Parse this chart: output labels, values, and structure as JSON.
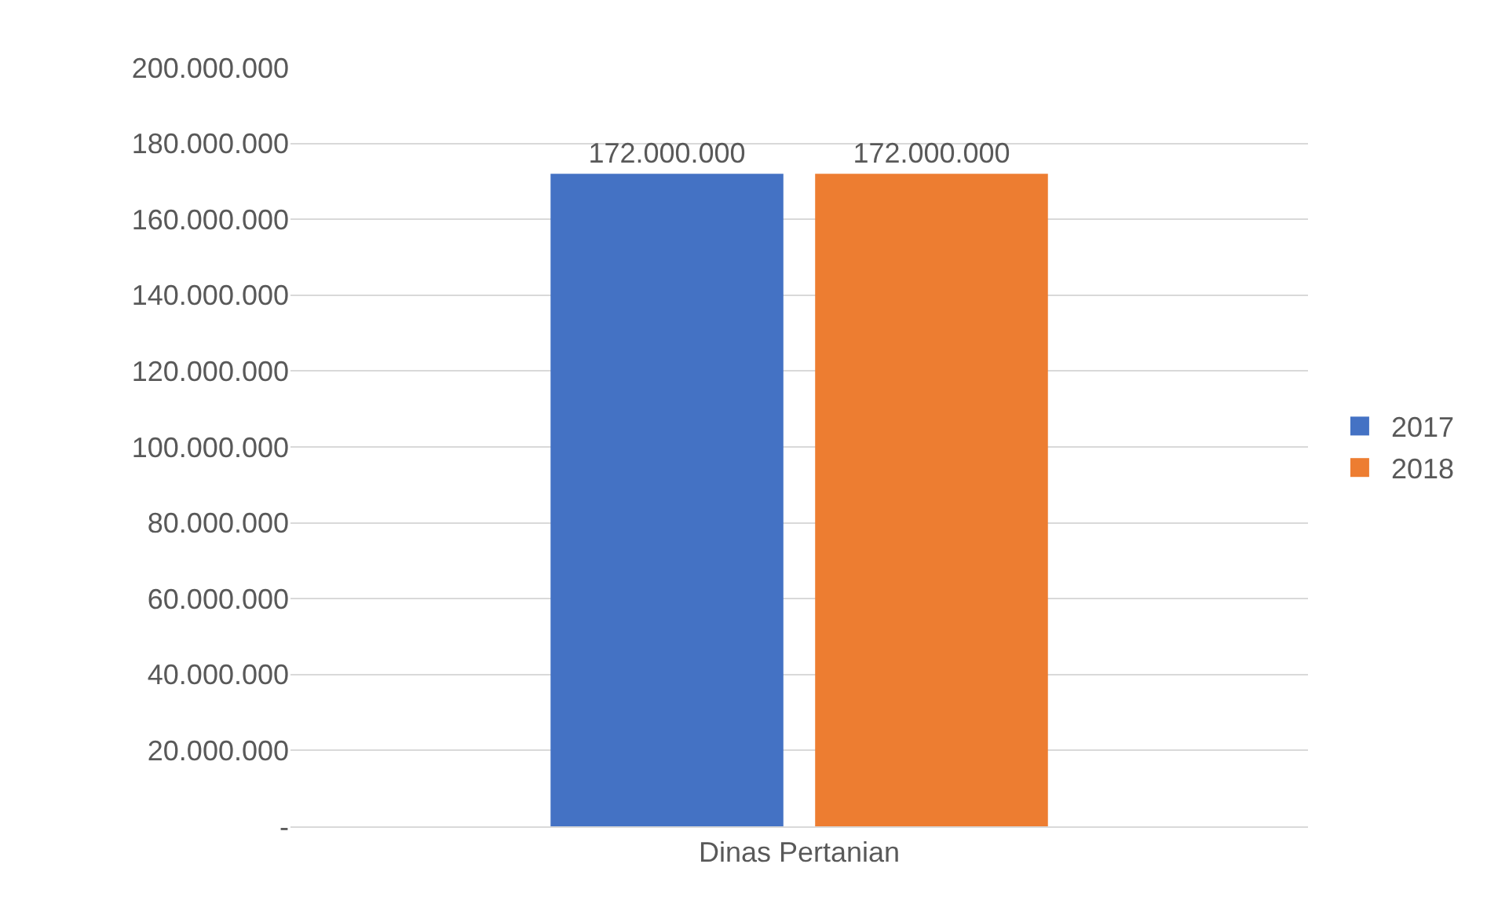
{
  "chart_data": {
    "type": "bar",
    "categories": [
      "Dinas Pertanian"
    ],
    "series": [
      {
        "name": "2017",
        "color": "#4472c4",
        "values": [
          172000000
        ],
        "value_labels": [
          "172.000.000"
        ]
      },
      {
        "name": "2018",
        "color": "#ed7d31",
        "values": [
          172000000
        ],
        "value_labels": [
          "172.000.000"
        ]
      }
    ],
    "ylim": [
      0,
      200000000
    ],
    "yticks": [
      {
        "value": 0,
        "label": "-"
      },
      {
        "value": 20000000,
        "label": "20.000.000"
      },
      {
        "value": 40000000,
        "label": "40.000.000"
      },
      {
        "value": 60000000,
        "label": "60.000.000"
      },
      {
        "value": 80000000,
        "label": "80.000.000"
      },
      {
        "value": 100000000,
        "label": "100.000.000"
      },
      {
        "value": 120000000,
        "label": "120.000.000"
      },
      {
        "value": 140000000,
        "label": "140.000.000"
      },
      {
        "value": 160000000,
        "label": "160.000.000"
      },
      {
        "value": 180000000,
        "label": "180.000.000"
      },
      {
        "value": 200000000,
        "label": "200.000.000"
      }
    ],
    "grid": "y",
    "legend": "right"
  }
}
